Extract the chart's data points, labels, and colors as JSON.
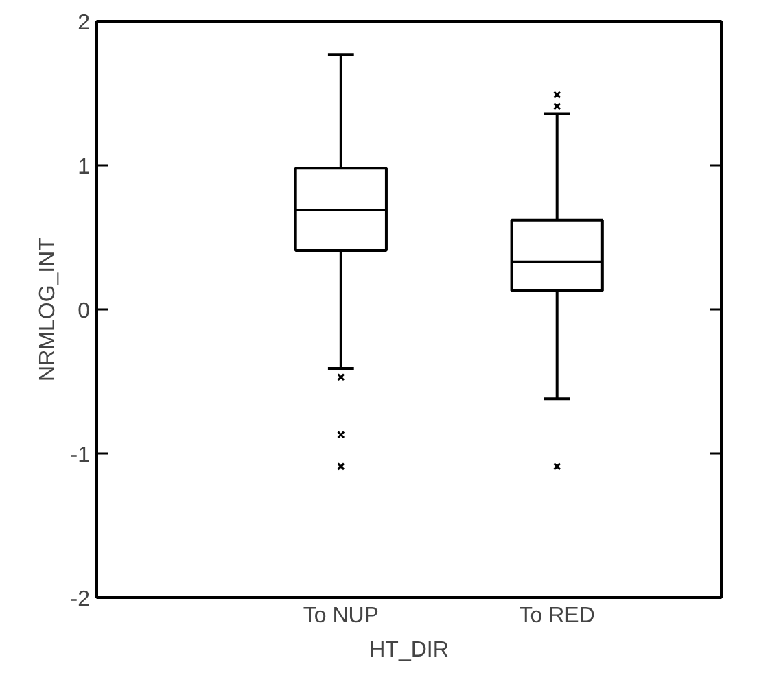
{
  "chart_data": {
    "type": "box",
    "xlabel": "HT_DIR",
    "ylabel": "NRMLOG_INT",
    "categories": [
      "To NUP",
      "To RED"
    ],
    "boxes": [
      {
        "low": -0.41,
        "q1": 0.41,
        "median": 0.69,
        "q3": 0.98,
        "high": 1.77,
        "outliers": [
          -0.47,
          -0.87,
          -1.09
        ]
      },
      {
        "low": -0.62,
        "q1": 0.13,
        "median": 0.33,
        "q3": 0.62,
        "high": 1.36,
        "outliers": [
          1.49,
          1.41,
          -1.09
        ]
      }
    ],
    "color": "#000000",
    "ylim": [
      -2,
      2
    ],
    "yticks": [
      -2,
      -1,
      0,
      1,
      2
    ],
    "grid": false,
    "marker": "cross"
  }
}
